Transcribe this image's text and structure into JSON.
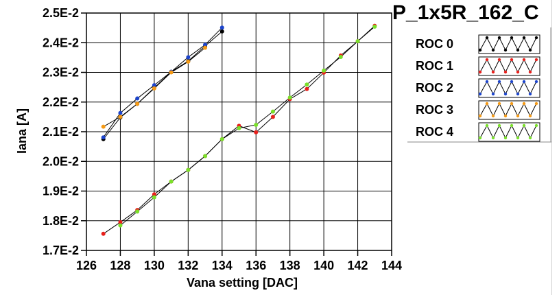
{
  "chart_data": {
    "type": "line",
    "title": "P_1x5R_162_C",
    "xlabel": "Vana setting [DAC]",
    "ylabel": "Iana [A]",
    "xlim": [
      126,
      144
    ],
    "ylim": [
      0.017,
      0.025
    ],
    "xticks": [
      126,
      128,
      130,
      132,
      134,
      136,
      138,
      140,
      142,
      144
    ],
    "yticks": [
      0.017,
      0.018,
      0.019,
      0.02,
      0.021,
      0.022,
      0.023,
      0.024,
      0.025
    ],
    "ytick_labels": [
      "1.7E-2",
      "1.8E-2",
      "1.9E-2",
      "2.0E-2",
      "2.1E-2",
      "2.2E-2",
      "2.3E-2",
      "2.4E-2",
      "2.5E-2"
    ],
    "grid": true,
    "legend_position": "right",
    "series": [
      {
        "name": "ROC 0",
        "color": "#000000",
        "x": [
          127,
          128,
          129,
          130,
          131,
          132,
          133,
          134
        ],
        "y": [
          0.02075,
          0.02148,
          0.02194,
          0.02248,
          0.02302,
          0.02338,
          0.02389,
          0.02438
        ]
      },
      {
        "name": "ROC 1",
        "color": "#e8201c",
        "x": [
          127,
          128,
          129,
          130,
          131,
          132,
          133,
          134,
          135,
          136,
          137,
          138,
          139,
          140,
          141,
          142,
          143
        ],
        "y": [
          0.01756,
          0.01795,
          0.01836,
          0.01889,
          0.01932,
          0.01971,
          0.02018,
          0.02075,
          0.0212,
          0.02098,
          0.0215,
          0.0221,
          0.02244,
          0.02299,
          0.02357,
          0.02405,
          0.02457
        ]
      },
      {
        "name": "ROC 2",
        "color": "#1c44cc",
        "x": [
          127,
          128,
          129,
          130,
          131,
          132,
          133,
          134
        ],
        "y": [
          0.02081,
          0.02163,
          0.02212,
          0.02257,
          0.02302,
          0.02351,
          0.02393,
          0.02451
        ]
      },
      {
        "name": "ROC 3",
        "color": "#f59a15",
        "x": [
          127,
          128,
          129,
          130,
          131,
          132,
          133
        ],
        "y": [
          0.02117,
          0.0215,
          0.02194,
          0.02246,
          0.023,
          0.02336,
          0.02383
        ]
      },
      {
        "name": "ROC 4",
        "color": "#7ae02a",
        "x": [
          128,
          129,
          130,
          131,
          132,
          133,
          134,
          135,
          136,
          137,
          138,
          139,
          140,
          141,
          142,
          143
        ],
        "y": [
          0.01784,
          0.01831,
          0.01879,
          0.01932,
          0.01971,
          0.02018,
          0.02075,
          0.02112,
          0.02123,
          0.02168,
          0.02215,
          0.02259,
          0.02306,
          0.02352,
          0.02405,
          0.02454
        ]
      }
    ]
  }
}
